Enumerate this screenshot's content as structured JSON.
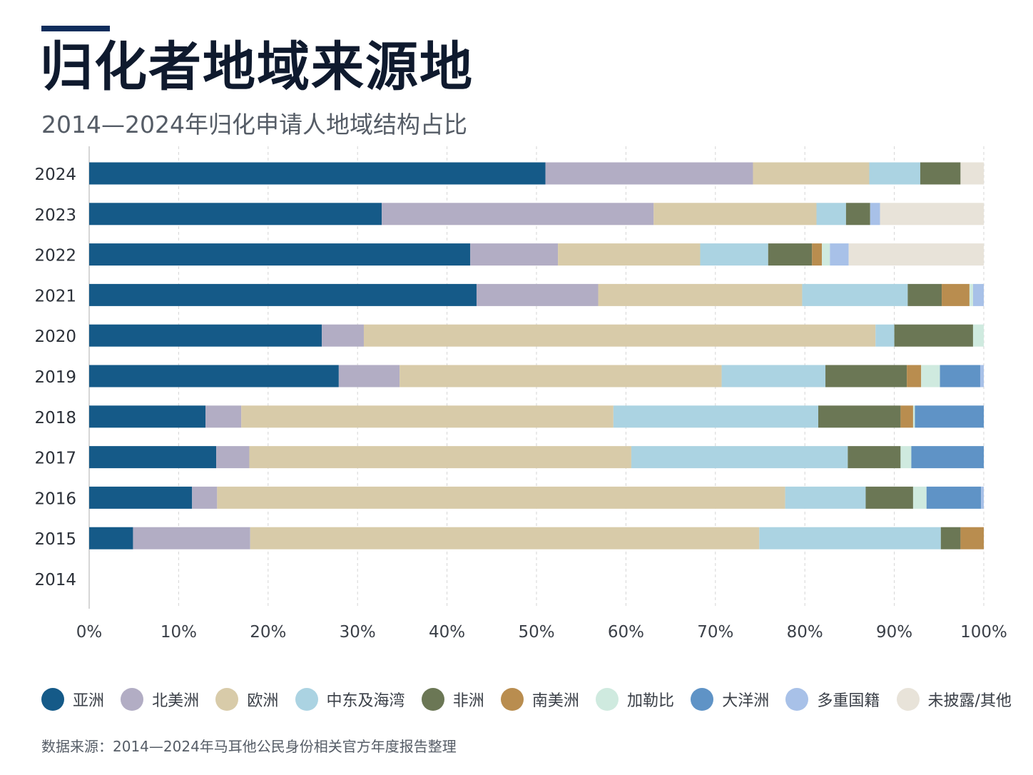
{
  "header": {
    "title": "归化者地域来源地",
    "subtitle": "2014—2024年归化申请人地域结构占比"
  },
  "footer": {
    "source": "数据来源：2014—2024年马耳他公民身份相关官方年度报告整理"
  },
  "colors": {
    "accent": "#0f2d5c",
    "grid": "#d5d5d5"
  },
  "chart_data": {
    "type": "bar",
    "orientation": "horizontal",
    "stacked": true,
    "categories": [
      "2024",
      "2023",
      "2022",
      "2021",
      "2020",
      "2019",
      "2018",
      "2017",
      "2016",
      "2015",
      "2014"
    ],
    "xlim": [
      0,
      100
    ],
    "xticks": [
      "0%",
      "10%",
      "20%",
      "30%",
      "40%",
      "50%",
      "60%",
      "70%",
      "80%",
      "90%",
      "100%"
    ],
    "grid": true,
    "legend_position": "bottom",
    "series": [
      {
        "name": "亚洲",
        "color": "#155a88",
        "values": [
          51,
          32.7,
          42.6,
          43.3,
          26,
          27.9,
          13,
          14.2,
          11.5,
          4.9,
          0
        ]
      },
      {
        "name": "北美洲",
        "color": "#b2adc4",
        "values": [
          23.2,
          30.4,
          9.8,
          13.6,
          4.7,
          6.8,
          4,
          3.7,
          2.8,
          13.1,
          0
        ]
      },
      {
        "name": "欧洲",
        "color": "#d8cba9",
        "values": [
          13,
          18.2,
          15.9,
          22.8,
          57.2,
          36,
          41.6,
          42.7,
          63.5,
          56.9,
          0
        ]
      },
      {
        "name": "中东及海湾",
        "color": "#abd3e2",
        "values": [
          5.7,
          3.3,
          7.6,
          11.8,
          2.1,
          11.6,
          22.9,
          24.2,
          9,
          20.3,
          0
        ]
      },
      {
        "name": "非洲",
        "color": "#6b7755",
        "values": [
          4.5,
          2.7,
          4.9,
          3.8,
          8.8,
          9.1,
          9.2,
          5.9,
          5.3,
          2.2,
          0
        ]
      },
      {
        "name": "南美洲",
        "color": "#b98d4f",
        "values": [
          0,
          0,
          1.1,
          3.1,
          0,
          1.6,
          1.4,
          0,
          0,
          2.6,
          0
        ]
      },
      {
        "name": "加勒比",
        "color": "#cfeadf",
        "values": [
          0,
          0,
          0.9,
          0.4,
          1.2,
          2.1,
          0.2,
          1.2,
          1.5,
          0,
          0
        ]
      },
      {
        "name": "大洋洲",
        "color": "#5f93c6",
        "values": [
          0,
          0,
          0,
          0,
          0,
          4.5,
          7.7,
          8.1,
          6.1,
          0,
          0
        ]
      },
      {
        "name": "多重国籍",
        "color": "#a8c1e8",
        "values": [
          0,
          1.1,
          2.1,
          1.2,
          0,
          0.4,
          0,
          0,
          0.3,
          0,
          0
        ]
      },
      {
        "name": "未披露/其他",
        "color": "#e8e3d9",
        "values": [
          2.6,
          11.6,
          15.1,
          0,
          0,
          0,
          0,
          0,
          0,
          0,
          0
        ]
      }
    ]
  }
}
